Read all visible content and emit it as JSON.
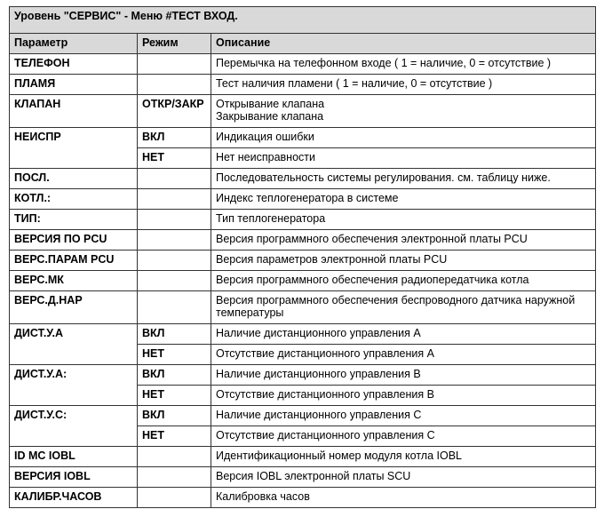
{
  "title": "Уровень \"СЕРВИС\" - Меню #ТЕСТ ВХОД.",
  "columns": [
    "Параметр",
    "Режим",
    "Описание"
  ],
  "rows": [
    {
      "param": "ТЕЛЕФОН",
      "mode": "",
      "desc": "Перемычка на телефонном входе ( 1 = наличие, 0 = отсутствие )"
    },
    {
      "param": "ПЛАМЯ",
      "mode": "",
      "desc": "Тест наличия пламени ( 1 = наличие, 0 = отсутствие )"
    },
    {
      "param": "КЛАПАН",
      "mode": "ОТКР/ЗАКР",
      "desc": "Открывание клапана\nЗакрывание клапана"
    },
    {
      "param": "НЕИСПР",
      "mode": "ВКЛ",
      "desc": "Индикация ошибки"
    },
    {
      "param": "",
      "mode": "НЕТ",
      "desc": "Нет неисправности"
    },
    {
      "param": "ПОСЛ.",
      "mode": "",
      "desc": "Последовательность системы регулирования. см. таблицу ниже."
    },
    {
      "param": "КОТЛ.:",
      "mode": "",
      "desc": "Индекс теплогенератора в системе"
    },
    {
      "param": "ТИП:",
      "mode": "",
      "desc": "Тип теплогенератора"
    },
    {
      "param": "ВЕРСИЯ ПО PCU",
      "mode": "",
      "desc": "Версия программного обеспечения электронной платы PCU"
    },
    {
      "param": "ВЕРС.ПАРАМ PCU",
      "mode": "",
      "desc": "Версия параметров электронной платы PCU"
    },
    {
      "param": "ВЕРС.МК",
      "mode": "",
      "desc": "Версия программного обеспечения радиопередатчика котла"
    },
    {
      "param": "ВЕРС.Д.НАР",
      "mode": "",
      "desc": "Версия программного обеспечения беспроводного датчика наружной температуры"
    },
    {
      "param": "ДИСТ.У.А",
      "mode": "ВКЛ",
      "desc": "Наличие дистанционного управления А"
    },
    {
      "param": "",
      "mode": "НЕТ",
      "desc": "Отсутствие дистанционного управления А"
    },
    {
      "param": "ДИСТ.У.А:",
      "mode": "ВКЛ",
      "desc": "Наличие дистанционного управления В"
    },
    {
      "param": "",
      "mode": "НЕТ",
      "desc": "Отсутствие дистанционного управления В"
    },
    {
      "param": "ДИСТ.У.С:",
      "mode": "ВКЛ",
      "desc": "Наличие дистанционного управления С"
    },
    {
      "param": "",
      "mode": "НЕТ",
      "desc": "Отсутствие дистанционного управления С"
    },
    {
      "param": "ID MC IOBL",
      "mode": "",
      "desc": "Идентификационный номер модуля котла IOBL"
    },
    {
      "param": "ВЕРСИЯ IOBL",
      "mode": "",
      "desc": "Версия IOBL электронной платы SCU"
    },
    {
      "param": "КАЛИБР.ЧАСОВ",
      "mode": "",
      "desc": "Калибровка часов"
    }
  ]
}
